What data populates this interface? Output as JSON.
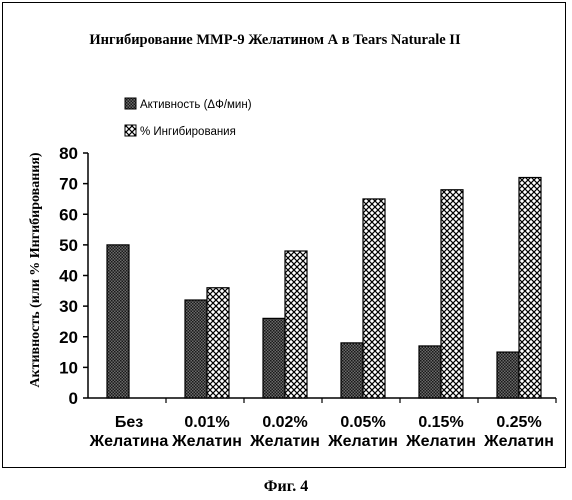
{
  "chart_data": {
    "type": "bar",
    "title": "Ингибирование MMP-9 Желатином А в Tears Naturale II",
    "ylabel": "Активность (или % Ингибирования)",
    "ylim": [
      0,
      80
    ],
    "yticks": [
      "0",
      "10",
      "20",
      "30",
      "40",
      "50",
      "60",
      "70",
      "80"
    ],
    "categories": [
      [
        "Без",
        "Желатина"
      ],
      [
        "0.01%",
        "Желатин"
      ],
      [
        "0.02%",
        "Желатин"
      ],
      [
        "0.05%",
        "Желатин"
      ],
      [
        "0.15%",
        "Желатин"
      ],
      [
        "0.25%",
        "Желатин"
      ]
    ],
    "series": [
      {
        "name": "Активность (ΔФ/мин)",
        "values": [
          50,
          32,
          26,
          18,
          17,
          15
        ],
        "pattern": "dark-dots"
      },
      {
        "name": "% Ингибирования",
        "values": [
          null,
          36,
          48,
          65,
          68,
          72
        ],
        "pattern": "crosshatch"
      }
    ],
    "legend_position": "top-left",
    "grid": false
  },
  "caption": "Фиг. 4"
}
